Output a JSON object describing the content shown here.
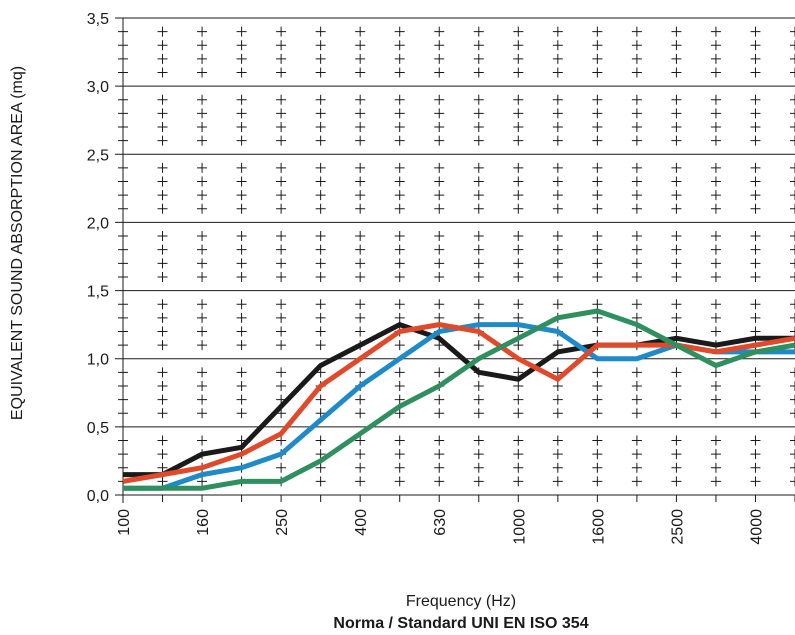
{
  "chart_data": {
    "type": "line",
    "title": "",
    "xlabel": "Frequency (Hz)",
    "subtitle": "Norma / Standard UNI EN ISO 354",
    "ylabel": "EQUIVALENT SOUND ABSORPTION AREA (mq)",
    "ylim": [
      0,
      3.5
    ],
    "y_ticks": [
      "0,0",
      "0,5",
      "1,0",
      "1,5",
      "2,0",
      "2,5",
      "3,0",
      "3,5"
    ],
    "x": [
      100,
      125,
      160,
      200,
      250,
      315,
      400,
      500,
      630,
      800,
      1000,
      1250,
      1600,
      2000,
      2500,
      3150,
      4000,
      5000
    ],
    "x_tick_labels": [
      "100",
      "160",
      "250",
      "400",
      "630",
      "1000",
      "1600",
      "2500",
      "4000"
    ],
    "grid": true,
    "series": [
      {
        "color": "#1a1a1a",
        "values": [
          0.15,
          0.15,
          0.3,
          0.35,
          0.65,
          0.95,
          1.1,
          1.25,
          1.15,
          0.9,
          0.85,
          1.05,
          1.1,
          1.1,
          1.15,
          1.1,
          1.15,
          1.15
        ]
      },
      {
        "color": "#1e8bc8",
        "values": [
          0.05,
          0.05,
          0.15,
          0.2,
          0.3,
          0.55,
          0.8,
          1.0,
          1.2,
          1.25,
          1.25,
          1.2,
          1.0,
          1.0,
          1.1,
          1.05,
          1.05,
          1.05
        ]
      },
      {
        "color": "#e04a2a",
        "values": [
          0.1,
          0.15,
          0.2,
          0.3,
          0.45,
          0.8,
          1.0,
          1.2,
          1.25,
          1.2,
          1.0,
          0.85,
          1.1,
          1.1,
          1.1,
          1.05,
          1.1,
          1.15
        ]
      },
      {
        "color": "#2f8f5e",
        "values": [
          0.05,
          0.05,
          0.05,
          0.1,
          0.1,
          0.25,
          0.45,
          0.65,
          0.8,
          1.0,
          1.15,
          1.3,
          1.35,
          1.25,
          1.1,
          0.95,
          1.05,
          1.1
        ]
      }
    ]
  }
}
